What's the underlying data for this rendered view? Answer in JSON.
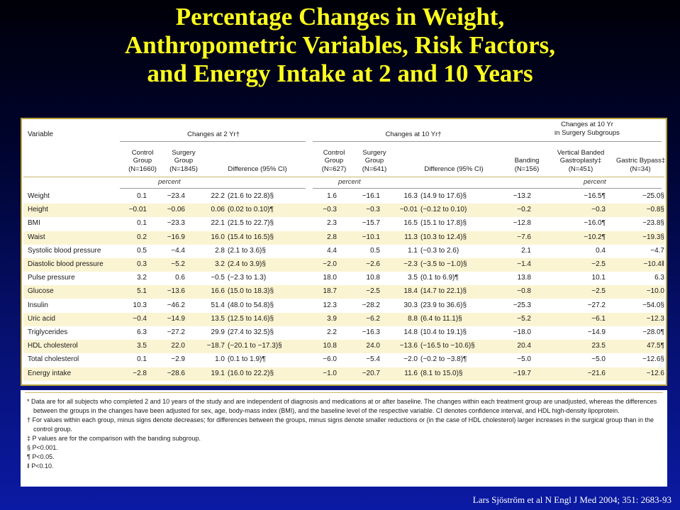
{
  "title": [
    "Percentage Changes in Weight,",
    "Anthropometric Variables, Risk Factors,",
    "and Energy Intake at 2 and 10 Years"
  ],
  "table": {
    "variable_header": "Variable",
    "group_2yr": "Changes at 2 Yr†",
    "group_10yr": "Changes at 10 Yr†",
    "group_sub": [
      "Changes at 10 Yr",
      "in Surgery Subgroups"
    ],
    "columns": [
      [
        "Control",
        "Group",
        "(N=1660)"
      ],
      [
        "Surgery",
        "Group",
        "(N=1845)"
      ],
      [
        "Difference (95% CI)"
      ],
      [
        "Control",
        "Group",
        "(N=627)"
      ],
      [
        "Surgery",
        "Group",
        "(N=641)"
      ],
      [
        "Difference (95% CI)"
      ],
      [
        "Banding",
        "(N=156)"
      ],
      [
        "Vertical Banded",
        "Gastroplasty‡",
        "(N=451)"
      ],
      [
        "Gastric Bypass‡",
        "(N=34)"
      ]
    ],
    "unit_label": "percent",
    "rows": [
      {
        "variable": "Weight",
        "c2": "0.1",
        "s2": "−23.4",
        "d2": "22.2",
        "ci2": "(21.6 to 22.8)§",
        "c10": "1.6",
        "s10": "−16.1",
        "d10": "16.3",
        "ci10": "(14.9 to 17.6)§",
        "band": "−13.2",
        "vbg": "−16.5¶",
        "gb": "−25.0§"
      },
      {
        "variable": "Height",
        "c2": "−0.01",
        "s2": "−0.06",
        "d2": "0.06",
        "ci2": "(0.02 to 0.10)¶",
        "c10": "−0.3",
        "s10": "−0.3",
        "d10": "−0.01",
        "ci10": "(−0.12 to 0.10)",
        "band": "−0.2",
        "vbg": "−0.3",
        "gb": "−0.8§"
      },
      {
        "variable": "BMI",
        "c2": "0.1",
        "s2": "−23.3",
        "d2": "22.1",
        "ci2": "(21.5 to 22.7)§",
        "c10": "2.3",
        "s10": "−15.7",
        "d10": "16.5",
        "ci10": "(15.1 to 17.8)§",
        "band": "−12.8",
        "vbg": "−16.0¶",
        "gb": "−23.8§"
      },
      {
        "variable": "Waist",
        "c2": "0.2",
        "s2": "−16.9",
        "d2": "16.0",
        "ci2": "(15.4 to 16.5)§",
        "c10": "2.8",
        "s10": "−10.1",
        "d10": "11.3",
        "ci10": "(10.3 to 12.4)§",
        "band": "−7.6",
        "vbg": "−10.2¶",
        "gb": "−19.3§"
      },
      {
        "variable": "Systolic blood pressure",
        "c2": "0.5",
        "s2": "−4.4",
        "d2": "2.8",
        "ci2": "(2.1 to 3.6)§",
        "c10": "4.4",
        "s10": "0.5",
        "d10": "1.1",
        "ci10": "(−0.3 to 2.6)",
        "band": "2.1",
        "vbg": "0.4",
        "gb": "−4.7"
      },
      {
        "variable": "Diastolic blood pressure",
        "c2": "0.3",
        "s2": "−5.2",
        "d2": "3.2",
        "ci2": "(2.4 to 3.9)§",
        "c10": "−2.0",
        "s10": "−2.6",
        "d10": "−2.3",
        "ci10": "(−3.5 to −1.0)§",
        "band": "−1.4",
        "vbg": "−2.5",
        "gb": "−10.4‖"
      },
      {
        "variable": "Pulse pressure",
        "c2": "3.2",
        "s2": "0.6",
        "d2": "−0.5",
        "ci2": "(−2.3 to 1.3)",
        "c10": "18.0",
        "s10": "10.8",
        "d10": "3.5",
        "ci10": "(0.1 to 6.9)¶",
        "band": "13.8",
        "vbg": "10.1",
        "gb": "6.3"
      },
      {
        "variable": "Glucose",
        "c2": "5.1",
        "s2": "−13.6",
        "d2": "16.6",
        "ci2": "(15.0 to 18.3)§",
        "c10": "18.7",
        "s10": "−2.5",
        "d10": "18.4",
        "ci10": "(14.7 to 22.1)§",
        "band": "−0.8",
        "vbg": "−2.5",
        "gb": "−10.0"
      },
      {
        "variable": "Insulin",
        "c2": "10.3",
        "s2": "−46.2",
        "d2": "51.4",
        "ci2": "(48.0 to 54.8)§",
        "c10": "12.3",
        "s10": "−28.2",
        "d10": "30.3",
        "ci10": "(23.9 to 36.6)§",
        "band": "−25.3",
        "vbg": "−27.2",
        "gb": "−54.0§"
      },
      {
        "variable": "Uric acid",
        "c2": "−0.4",
        "s2": "−14.9",
        "d2": "13.5",
        "ci2": "(12.5 to 14.6)§",
        "c10": "3.9",
        "s10": "−6.2",
        "d10": "8.8",
        "ci10": "(6.4 to 11.1)§",
        "band": "−5.2",
        "vbg": "−6.1",
        "gb": "−12.3"
      },
      {
        "variable": "Triglycerides",
        "c2": "6.3",
        "s2": "−27.2",
        "d2": "29.9",
        "ci2": "(27.4 to 32.5)§",
        "c10": "2.2",
        "s10": "−16.3",
        "d10": "14.8",
        "ci10": "(10.4 to 19.1)§",
        "band": "−18.0",
        "vbg": "−14.9",
        "gb": "−28.0¶"
      },
      {
        "variable": "HDL cholesterol",
        "c2": "3.5",
        "s2": "22.0",
        "d2": "−18.7",
        "ci2": "(−20.1 to −17.3)§",
        "c10": "10.8",
        "s10": "24.0",
        "d10": "−13.6",
        "ci10": "(−16.5 to −10.6)§",
        "band": "20.4",
        "vbg": "23.5",
        "gb": "47.5¶"
      },
      {
        "variable": "Total cholesterol",
        "c2": "0.1",
        "s2": "−2.9",
        "d2": "1.0",
        "ci2": "(0.1 to 1.9)¶",
        "c10": "−6.0",
        "s10": "−5.4",
        "d10": "−2.0",
        "ci10": "(−0.2 to −3.8)¶",
        "band": "−5.0",
        "vbg": "−5.0",
        "gb": "−12.6§"
      },
      {
        "variable": "Energy intake",
        "c2": "−2.8",
        "s2": "−28.6",
        "d2": "19.1",
        "ci2": "(16.0 to 22.2)§",
        "c10": "−1.0",
        "s10": "−20.7",
        "d10": "11.6",
        "ci10": "(8.1 to 15.0)§",
        "band": "−19.7",
        "vbg": "−21.6",
        "gb": "−12.6"
      }
    ]
  },
  "notes": [
    "* Data are for all subjects who completed 2 and 10 years of the study and are independent of diagnosis and medications at or after baseline. The changes within each treatment group are unadjusted, whereas the differences between the groups in the changes have been adjusted for sex, age, body-mass index (BMI), and the baseline level of the respective variable. CI denotes confidence interval, and HDL high-density lipoprotein.",
    "† For values within each group, minus signs denote decreases; for differences between the groups, minus signs denote smaller reductions or (in the case of HDL cholesterol) larger increases in the surgical group than in the control group.",
    "‡ P values are for the comparison with the banding subgroup.",
    "§ P<0.001.",
    "¶ P<0.05.",
    "‖ P<0.10."
  ],
  "citation": "Lars Sjöström et al N Engl J Med 2004; 351: 2683-93"
}
